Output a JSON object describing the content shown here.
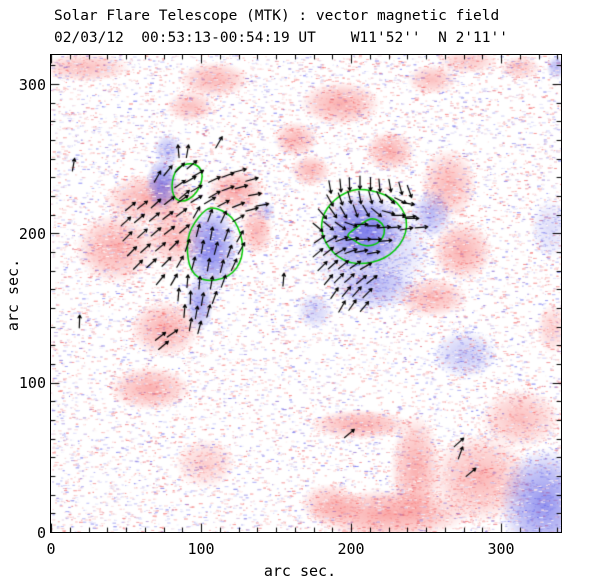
{
  "title": {
    "line1": "Solar Flare Telescope (MTK) : vector magnetic field",
    "line2": "02/03/12  00:53:13-00:54:19 UT    W11'52''  N 2'11''"
  },
  "chart_data": {
    "type": "heatmap",
    "title": "Solar Flare Telescope (MTK) : vector magnetic field",
    "subtitle": "02/03/12  00:53:13-00:54:19 UT    W11'52''  N 2'11''",
    "xlabel": "arc sec.",
    "ylabel": "arc sec.",
    "xlim": [
      0,
      340
    ],
    "ylim": [
      0,
      320
    ],
    "xticks": [
      0,
      100,
      200,
      300
    ],
    "yticks": [
      0,
      100,
      200,
      300
    ],
    "xtick_labels": [
      "0",
      "100",
      "200",
      "300"
    ],
    "ytick_labels": [
      "0",
      "100",
      "200",
      "300"
    ],
    "minor_tick_step": 12.5,
    "grid": false,
    "legend": "none",
    "colors": {
      "positive_flux": "#f66060",
      "negative_flux": "#5a5ae6",
      "contour": "#00c800",
      "vectors": "#000000",
      "axis": "#000000",
      "background": "#ffffff"
    },
    "positive_regions": [
      [
        23,
        311,
        30,
        9.4,
        0.4
      ],
      [
        109,
        303,
        23.3,
        12,
        0.45
      ],
      [
        93,
        285,
        16,
        10.7,
        0.4
      ],
      [
        193,
        287,
        26.7,
        14.7,
        0.5
      ],
      [
        163,
        263,
        14.7,
        12,
        0.45
      ],
      [
        226,
        255,
        16.7,
        13.4,
        0.5
      ],
      [
        254,
        303,
        16.7,
        10,
        0.4
      ],
      [
        278,
        315,
        20,
        8,
        0.35
      ],
      [
        313,
        311,
        13.3,
        8,
        0.35
      ],
      [
        66,
        223,
        30,
        16.7,
        0.5
      ],
      [
        43,
        190,
        26.7,
        23.4,
        0.5
      ],
      [
        83,
        198,
        20,
        20,
        0.45
      ],
      [
        123,
        228,
        18.7,
        14.7,
        0.55
      ],
      [
        137,
        202,
        10.7,
        16.7,
        0.45
      ],
      [
        173,
        242,
        13.3,
        10.7,
        0.45
      ],
      [
        265,
        233,
        18.7,
        23.4,
        0.45
      ],
      [
        274,
        188,
        20,
        20,
        0.5
      ],
      [
        254,
        157,
        23.3,
        13.4,
        0.45
      ],
      [
        76,
        136,
        23.3,
        18.7,
        0.5
      ],
      [
        66,
        96,
        26.7,
        14.7,
        0.5
      ],
      [
        103,
        46,
        20,
        16.7,
        0.3
      ],
      [
        206,
        72,
        33.3,
        10,
        0.5
      ],
      [
        243,
        42,
        16.7,
        36.8,
        0.5
      ],
      [
        226,
        12,
        53.3,
        16.7,
        0.55
      ],
      [
        286,
        36,
        33.3,
        30,
        0.45
      ],
      [
        186,
        19,
        20,
        13.4,
        0.4
      ],
      [
        313,
        76,
        26.7,
        20,
        0.4
      ],
      [
        334,
        136,
        10,
        16.7,
        0.3
      ]
    ],
    "negative_regions": [
      [
        74,
        233,
        10.7,
        17.4,
        0.7
      ],
      [
        78,
        256,
        9.3,
        10.7,
        0.4
      ],
      [
        107,
        190,
        17.3,
        28,
        0.75
      ],
      [
        99,
        153,
        9.3,
        18.7,
        0.55
      ],
      [
        143,
        215,
        6.7,
        6.7,
        0.3
      ],
      [
        207,
        202,
        28,
        25.4,
        0.72
      ],
      [
        213,
        188,
        40,
        33.5,
        0.3
      ],
      [
        216,
        163,
        26.7,
        14.7,
        0.35
      ],
      [
        254,
        213,
        13.3,
        16,
        0.42
      ],
      [
        276,
        119,
        21.3,
        16,
        0.33
      ],
      [
        329,
        19,
        30,
        36.8,
        0.65
      ],
      [
        176,
        148,
        12,
        12,
        0.28
      ],
      [
        337,
        311,
        6.7,
        8,
        0.4
      ],
      [
        333,
        203,
        13.3,
        20,
        0.2
      ]
    ],
    "contours": [
      [
        [
          80.7,
          234.4
        ],
        [
          82.7,
          241.8
        ],
        [
          87.3,
          245.8
        ],
        [
          94,
          247.1
        ],
        [
          99.3,
          244.4
        ],
        [
          101.3,
          238.4
        ],
        [
          99.3,
          231
        ],
        [
          94.7,
          224.3
        ],
        [
          88,
          221
        ],
        [
          82.7,
          223
        ],
        [
          80.7,
          228.4
        ]
      ],
      [
        [
          106,
          217.7
        ],
        [
          114,
          215.6
        ],
        [
          120.7,
          210.9
        ],
        [
          124.7,
          204.2
        ],
        [
          127.3,
          196.2
        ],
        [
          128,
          188.2
        ],
        [
          126,
          180.1
        ],
        [
          121.3,
          173.4
        ],
        [
          114,
          169.4
        ],
        [
          105.3,
          168.1
        ],
        [
          98,
          170.1
        ],
        [
          93.3,
          175.4
        ],
        [
          91.3,
          182.8
        ],
        [
          90.7,
          191.5
        ],
        [
          92,
          200.2
        ],
        [
          96,
          207.6
        ],
        [
          100.7,
          213.6
        ]
      ],
      [
        [
          208,
          229.7
        ],
        [
          218,
          227.7
        ],
        [
          227.3,
          223.7
        ],
        [
          234,
          217
        ],
        [
          237.3,
          208.9
        ],
        [
          236.7,
          200.2
        ],
        [
          232.7,
          192.2
        ],
        [
          226,
          185.5
        ],
        [
          218,
          181.5
        ],
        [
          208.7,
          179.5
        ],
        [
          199.3,
          180.1
        ],
        [
          191.3,
          184.2
        ],
        [
          185.3,
          190.2
        ],
        [
          181.3,
          197.5
        ],
        [
          180,
          205.6
        ],
        [
          182,
          213.6
        ],
        [
          186.7,
          220.3
        ],
        [
          193.3,
          225.7
        ],
        [
          200.7,
          229
        ]
      ],
      [
        [
          215.3,
          210.3
        ],
        [
          220.7,
          206.9
        ],
        [
          222.7,
          202.2
        ],
        [
          221.3,
          196.9
        ],
        [
          217.3,
          192.9
        ],
        [
          212,
          191.5
        ],
        [
          206.7,
          192.2
        ],
        [
          202,
          195.5
        ],
        [
          196.7,
          198.2
        ],
        [
          201.3,
          202.2
        ],
        [
          206.7,
          206.2
        ],
        [
          210.7,
          208.9
        ]
      ]
    ],
    "vector_length": 8.5,
    "vectors": [
      [
        85,
        255,
        95
      ],
      [
        91,
        255,
        80
      ],
      [
        112,
        261,
        60
      ],
      [
        71,
        238,
        60
      ],
      [
        78,
        242,
        50
      ],
      [
        86,
        244,
        45
      ],
      [
        94,
        246,
        40
      ],
      [
        86,
        233,
        35
      ],
      [
        93,
        236,
        30
      ],
      [
        98,
        240,
        30
      ],
      [
        89,
        226,
        40
      ],
      [
        97,
        230,
        30
      ],
      [
        109,
        236,
        25
      ],
      [
        118,
        239,
        20
      ],
      [
        126,
        242,
        15
      ],
      [
        134,
        236,
        15
      ],
      [
        109,
        226,
        30
      ],
      [
        118,
        230,
        20
      ],
      [
        127,
        231,
        15
      ],
      [
        136,
        226,
        10
      ],
      [
        141,
        219,
        10
      ],
      [
        53,
        218,
        40
      ],
      [
        61,
        219,
        38
      ],
      [
        70,
        220,
        42
      ],
      [
        79,
        222,
        38
      ],
      [
        88,
        223,
        35
      ],
      [
        97,
        223,
        32
      ],
      [
        106,
        222,
        30
      ],
      [
        115,
        220,
        28
      ],
      [
        125,
        219,
        22
      ],
      [
        134,
        216,
        15
      ],
      [
        50,
        208,
        42
      ],
      [
        59,
        210,
        40
      ],
      [
        69,
        211,
        40
      ],
      [
        78,
        212,
        38
      ],
      [
        87,
        214,
        36
      ],
      [
        97,
        214,
        60
      ],
      [
        106,
        212,
        70
      ],
      [
        115,
        211,
        65
      ],
      [
        125,
        210,
        30
      ],
      [
        51,
        198,
        45
      ],
      [
        61,
        200,
        42
      ],
      [
        70,
        201,
        40
      ],
      [
        79,
        202,
        38
      ],
      [
        89,
        203,
        40
      ],
      [
        98,
        202,
        75
      ],
      [
        107,
        200,
        80
      ],
      [
        117,
        199,
        70
      ],
      [
        126,
        198,
        60
      ],
      [
        54,
        188,
        45
      ],
      [
        63,
        190,
        42
      ],
      [
        73,
        191,
        40
      ],
      [
        82,
        192,
        45
      ],
      [
        91,
        192,
        70
      ],
      [
        101,
        191,
        80
      ],
      [
        110,
        190,
        75
      ],
      [
        119,
        188,
        70
      ],
      [
        127,
        190,
        60
      ],
      [
        58,
        179,
        45
      ],
      [
        67,
        180,
        42
      ],
      [
        77,
        181,
        45
      ],
      [
        86,
        181,
        60
      ],
      [
        95,
        180,
        75
      ],
      [
        105,
        179,
        80
      ],
      [
        114,
        178,
        75
      ],
      [
        122,
        179,
        65
      ],
      [
        73,
        169,
        50
      ],
      [
        82,
        169,
        60
      ],
      [
        91,
        168,
        85
      ],
      [
        99,
        167,
        85
      ],
      [
        107,
        167,
        80
      ],
      [
        115,
        168,
        70
      ],
      [
        85,
        159,
        85
      ],
      [
        93,
        157,
        88
      ],
      [
        101,
        156,
        80
      ],
      [
        109,
        157,
        70
      ],
      [
        89,
        148,
        85
      ],
      [
        97,
        147,
        80
      ],
      [
        105,
        148,
        75
      ],
      [
        93,
        139,
        80
      ],
      [
        99,
        137,
        75
      ],
      [
        15,
        246,
        80
      ],
      [
        19,
        141,
        88
      ],
      [
        73,
        131,
        38
      ],
      [
        81,
        133,
        35
      ],
      [
        75,
        125,
        40
      ],
      [
        155,
        169,
        85
      ],
      [
        186,
        231,
        -80
      ],
      [
        193,
        232,
        -85
      ],
      [
        199,
        233,
        -88
      ],
      [
        206,
        234,
        -90
      ],
      [
        213,
        233,
        -90
      ],
      [
        219,
        232,
        -85
      ],
      [
        226,
        232,
        -80
      ],
      [
        233,
        230,
        -75
      ],
      [
        239,
        228,
        -70
      ],
      [
        186,
        222,
        -60
      ],
      [
        193,
        223,
        -70
      ],
      [
        199,
        224,
        -75
      ],
      [
        206,
        224,
        -80
      ],
      [
        213,
        224,
        -75
      ],
      [
        219,
        224,
        -65
      ],
      [
        226,
        223,
        -45
      ],
      [
        233,
        222,
        -25
      ],
      [
        238,
        220,
        -10
      ],
      [
        181,
        213,
        -50
      ],
      [
        188,
        214,
        -55
      ],
      [
        195,
        214,
        -60
      ],
      [
        203,
        215,
        -70
      ],
      [
        210,
        215,
        -60
      ],
      [
        217,
        214,
        -40
      ],
      [
        225,
        214,
        -15
      ],
      [
        232,
        212,
        0
      ],
      [
        239,
        211,
        5
      ],
      [
        178,
        204,
        -40
      ],
      [
        185,
        205,
        -40
      ],
      [
        193,
        205,
        -35
      ],
      [
        200,
        206,
        -20
      ],
      [
        207,
        206,
        0
      ],
      [
        215,
        205,
        0
      ],
      [
        222,
        204,
        5
      ],
      [
        229,
        204,
        5
      ],
      [
        237,
        203,
        10
      ],
      [
        179,
        196,
        35
      ],
      [
        187,
        196,
        30
      ],
      [
        194,
        196,
        20
      ],
      [
        201,
        196,
        10
      ],
      [
        209,
        196,
        0
      ],
      [
        216,
        196,
        0
      ],
      [
        223,
        195,
        5
      ],
      [
        178,
        187,
        40
      ],
      [
        185,
        188,
        38
      ],
      [
        193,
        188,
        30
      ],
      [
        200,
        188,
        20
      ],
      [
        207,
        188,
        10
      ],
      [
        215,
        187,
        10
      ],
      [
        181,
        178,
        45
      ],
      [
        188,
        179,
        42
      ],
      [
        195,
        179,
        40
      ],
      [
        203,
        179,
        35
      ],
      [
        210,
        178,
        30
      ],
      [
        185,
        169,
        50
      ],
      [
        192,
        170,
        45
      ],
      [
        199,
        170,
        42
      ],
      [
        207,
        169,
        40
      ],
      [
        214,
        169,
        38
      ],
      [
        189,
        160,
        55
      ],
      [
        197,
        161,
        50
      ],
      [
        204,
        161,
        48
      ],
      [
        211,
        160,
        45
      ],
      [
        194,
        151,
        60
      ],
      [
        201,
        152,
        55
      ],
      [
        209,
        151,
        50
      ],
      [
        241,
        210,
        0
      ],
      [
        247,
        204,
        5
      ],
      [
        199,
        66,
        40
      ],
      [
        272,
        60,
        42
      ],
      [
        273,
        53,
        70
      ],
      [
        280,
        40,
        40
      ]
    ]
  }
}
